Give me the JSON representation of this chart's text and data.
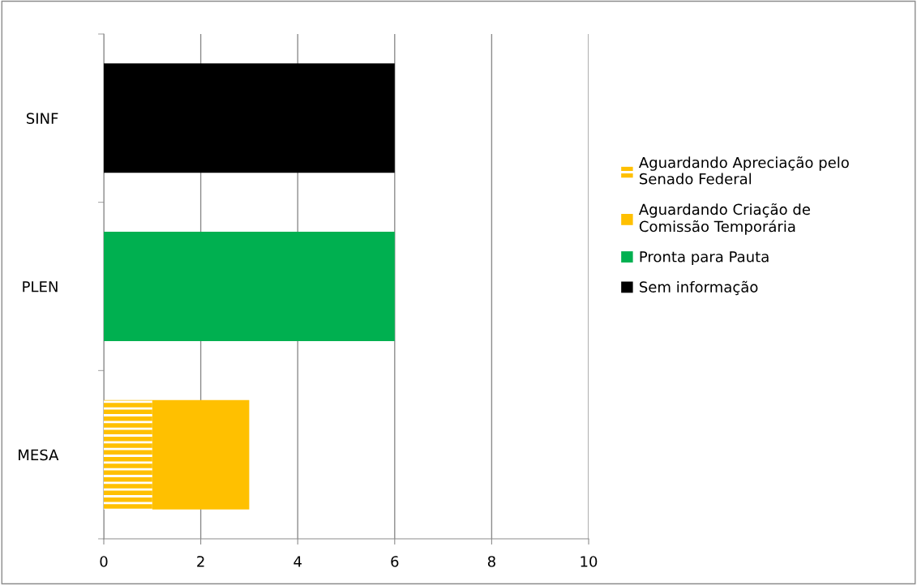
{
  "chart_data": {
    "type": "bar",
    "orientation": "horizontal",
    "stacked": true,
    "categories": [
      "SINF",
      "PLEN",
      "MESA"
    ],
    "series": [
      {
        "name": "Aguardando Apreciação pelo\nSenado Federal",
        "color": "#ffc000",
        "values": [
          null,
          null,
          1
        ]
      },
      {
        "name": "Aguardando Criação de\nComissão Temporária",
        "color": "#ffc000",
        "values": [
          null,
          null,
          2
        ]
      },
      {
        "name": "Pronta para Pauta",
        "color": "#00b050",
        "values": [
          null,
          6,
          null
        ]
      },
      {
        "name": "Sem informação",
        "color": "#000000",
        "values": [
          6,
          null,
          null
        ]
      }
    ],
    "xlim": [
      0,
      10
    ],
    "xticks": [
      0,
      2,
      4,
      6,
      8,
      10
    ],
    "grid": "x",
    "legend": "right"
  }
}
